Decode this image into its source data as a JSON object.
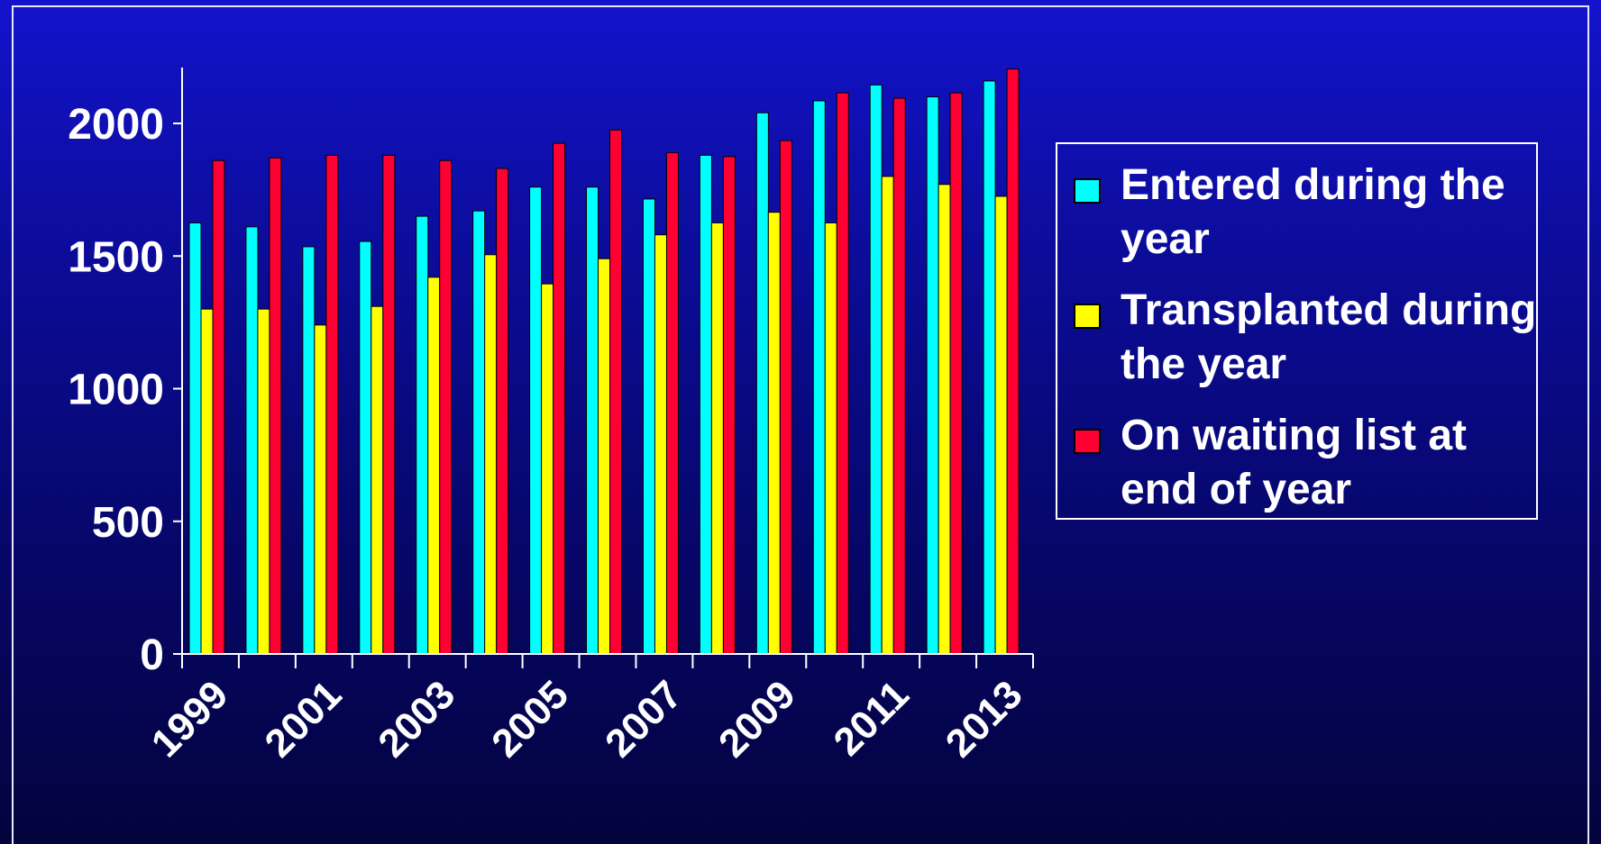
{
  "colors": {
    "entered": "#00ffff",
    "transplanted": "#ffff00",
    "waiting": "#ff0033",
    "axis": "#ffffff",
    "bar_outline": "#000000"
  },
  "chart_data": {
    "type": "bar",
    "categories": [
      "1999",
      "2000",
      "2001",
      "2002",
      "2003",
      "2004",
      "2005",
      "2006",
      "2007",
      "2008",
      "2009",
      "2010",
      "2011",
      "2012",
      "2013"
    ],
    "x_tick_labels": [
      "1999",
      "2001",
      "2003",
      "2005",
      "2007",
      "2009",
      "2011",
      "2013"
    ],
    "y_ticks": [
      0,
      500,
      1000,
      1500,
      2000
    ],
    "y_tick_labels": [
      "0",
      "500",
      "1000",
      "1500",
      "2000"
    ],
    "ylim": [
      0,
      2200
    ],
    "grid": false,
    "legend_position": "right",
    "series": [
      {
        "name": "Entered during the year",
        "color_key": "entered",
        "values": [
          1625,
          1610,
          1535,
          1555,
          1650,
          1670,
          1760,
          1760,
          1715,
          1880,
          2040,
          2085,
          2145,
          2100,
          2160
        ]
      },
      {
        "name": "Transplanted during the year",
        "color_key": "transplanted",
        "values": [
          1300,
          1300,
          1240,
          1310,
          1420,
          1505,
          1395,
          1490,
          1580,
          1625,
          1665,
          1625,
          1800,
          1770,
          1725
        ]
      },
      {
        "name": "On waiting list at end of year",
        "color_key": "waiting",
        "values": [
          1860,
          1870,
          1880,
          1880,
          1860,
          1830,
          1925,
          1975,
          1890,
          1875,
          1935,
          2115,
          2095,
          2115,
          2205
        ]
      }
    ]
  },
  "legend": {
    "items": [
      {
        "label": "Entered during the year"
      },
      {
        "label": "Transplanted during the year"
      },
      {
        "label": "On waiting list at end of year"
      }
    ]
  }
}
